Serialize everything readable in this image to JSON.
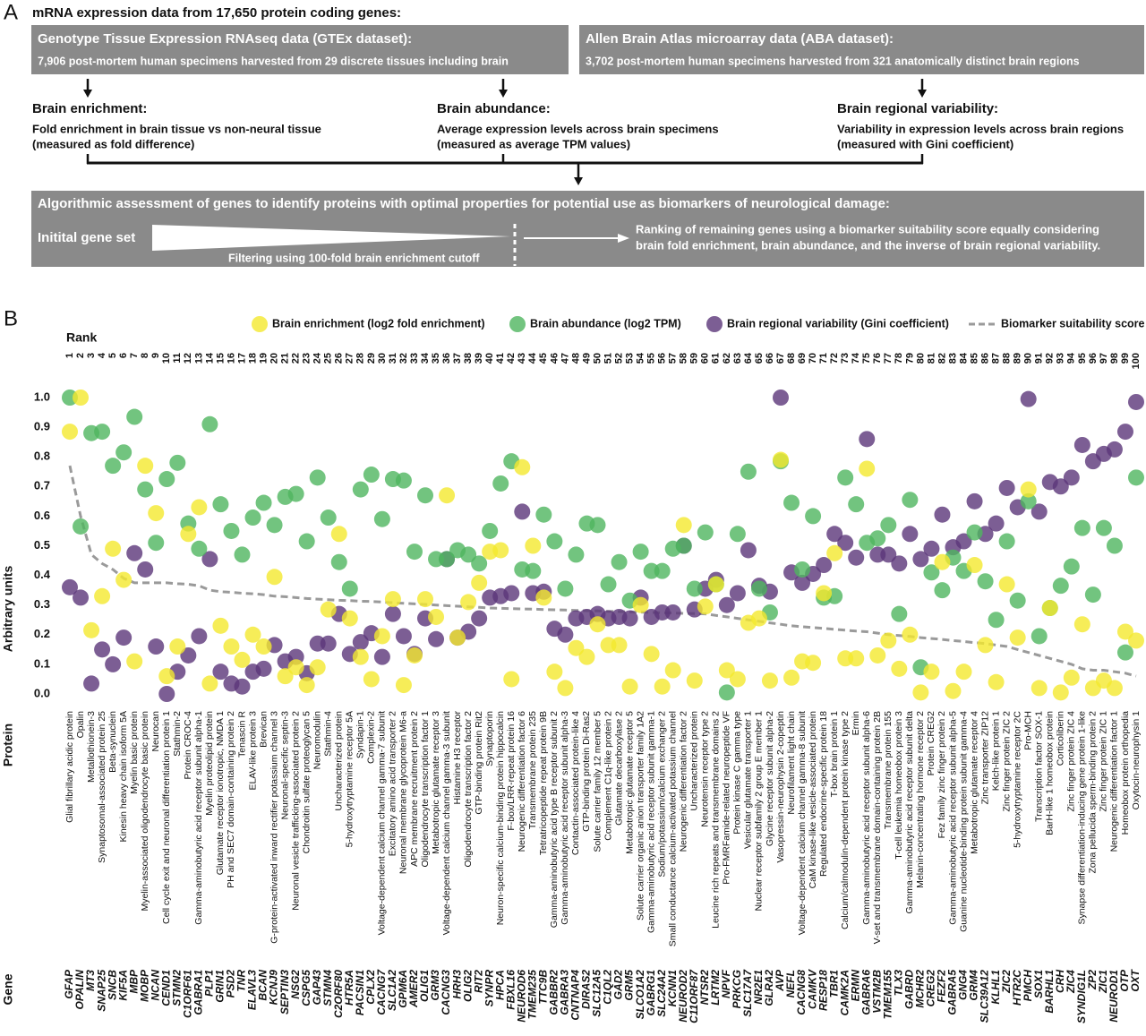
{
  "panel_a": {
    "label": "A",
    "title": "mRNA expression data from 17,650 protein coding genes:",
    "datasets": [
      {
        "title": "Genotype Tissue Expression RNAseq data (GTEx dataset):",
        "text": "7,906 post-mortem human specimens harvested from 29 discrete tissues including brain"
      },
      {
        "title": "Allen Brain Atlas microarray data (ABA dataset):",
        "text": "3,702 post-mortem human specimens harvested from 321 anatomically distinct brain regions"
      }
    ],
    "measures": [
      {
        "title": "Brain enrichment:",
        "lines": [
          "Fold enrichment in brain tissue vs non-neural tissue",
          "(measured as fold difference)"
        ]
      },
      {
        "title": "Brain abundance:",
        "lines": [
          "Average expression levels across brain specimens",
          "(measured as average TPM values)"
        ]
      },
      {
        "title": "Brain regional variability:",
        "lines": [
          "Variability in expression levels across brain regions",
          "(measured with Gini coefficient)"
        ]
      }
    ],
    "assessment": {
      "title": "Algorithmic assessment of genes to identify proteins with optimal properties for potential use as biomarkers of neurological damage:",
      "start": "Initital gene set",
      "filter": "Filtering using 100-fold brain enrichment cutoff",
      "ranking": [
        "Ranking of remaining genes using a biomarker suitability score equally considering",
        "brain fold enrichment, brain abundance, and the inverse of brain regional variability."
      ]
    }
  },
  "panel_b": {
    "label": "B"
  },
  "chart_data": {
    "type": "scatter",
    "rank_label": "Rank",
    "y_label": "Arbitrary units",
    "protein_label": "Protein",
    "gene_label": "Gene",
    "categories": [
      1,
      2,
      3,
      4,
      5,
      6,
      7,
      8,
      9,
      10,
      11,
      12,
      13,
      14,
      15,
      16,
      17,
      18,
      19,
      20,
      21,
      22,
      23,
      24,
      25,
      26,
      27,
      28,
      29,
      30,
      31,
      32,
      33,
      34,
      35,
      36,
      37,
      38,
      39,
      40,
      41,
      42,
      43,
      44,
      45,
      46,
      47,
      48,
      49,
      50,
      51,
      52,
      53,
      54,
      55,
      56,
      57,
      58,
      59,
      60,
      61,
      62,
      63,
      64,
      65,
      66,
      67,
      68,
      69,
      70,
      71,
      72,
      73,
      74,
      75,
      76,
      77,
      78,
      79,
      80,
      81,
      82,
      83,
      84,
      85,
      86,
      87,
      88,
      89,
      90,
      91,
      92,
      93,
      94,
      95,
      96,
      97,
      98,
      99,
      100
    ],
    "proteins": [
      "Glial fibrillary acidic protein",
      "Opalin",
      "Metallothionein-3",
      "Synaptosomal-associated protein 25",
      "Beta-synuclein",
      "Kinesin heavy chain isoform 5A",
      "Myelin basic protein",
      "Myelin-associated oligodendrocyte basic protein",
      "Neurocan",
      "Cell cycle exit and neuronal differentiation protein 1",
      "Stathmin-2",
      "Protein CROC-4",
      "Gamma-aminobutyric acid receptor subunit alpha-1",
      "Myelin proteolipid protein",
      "Glutamate receptor ionotropic, NMDA 1",
      "PH and SEC7 domain-containing protein 2",
      "Tenascin R",
      "ELAV-like protein 3",
      "Brevican",
      "G-protein-activated inward rectifier potassium channel 3",
      "Neuronal-specific septin-3",
      "Neuronal vesicle trafficking-associated protein 2",
      "Chondroitin sulfate proteoglycan 5",
      "Neuromodulin",
      "Stathmin-4",
      "Uncharacterized protein",
      "5-hydroxytryptamine receptor 5A",
      "Syndapin-1",
      "Complexin-2",
      "Voltage-dependent calcium channel gamma-7 subunit",
      "Excitatory amino acid transporter 2",
      "Neuronal membrane glycoprotein M6-a",
      "APC membrane recruitment protein 2",
      "Oligodendrocyte transcription factor 1",
      "Metabotropic glutamate receptor 3",
      "Voltage-dependent calcium channel gamma-3 subunit",
      "Histamine H3 receptor",
      "Oligodendrocyte transcription factor 2",
      "GTP-binding protein Rit2",
      "Synaptoporin",
      "Neuron-specific calcium-binding protein hippocalcin",
      "F-box/LRR-repeat protein 16",
      "Neurogenic differentiation factor 6",
      "Transmembrane protein 235",
      "Tetratricopeptide repeat protein 9B",
      "Gamma-aminobutyric acid type B receptor subunit 2",
      "Gamma-aminobutyric acid receptor subunit alpha-3",
      "Contactin-associated protein-like 4",
      "GTP-binding protein Di-Ras2",
      "Solute carrier family 12 member 5",
      "Complement C1q-like protein 2",
      "Glutamate decarboxylase 2",
      "Metabotropic glutamate receptor 5",
      "Solute carrier organic anion transporter family 1A2",
      "Gamma-aminobutyric acid receptor subunit gamma-1",
      "Sodium/potassium/calcium exchanger 2",
      "Small conductance calcium-activated potassium channel",
      "Neurogenic differentiation factor 2",
      "Uncharacterized protein",
      "Neurotensin receptor type 2",
      "Leucine rich repeats and transmembrane domains 2",
      "Pro-FMRFamide-related neuropeptide VF",
      "Protein kinase C gamma type",
      "Vesicular glutamate transporter 1",
      "Nuclear receptor subfamily 2 group E member 1",
      "Glycine receptor subunit alpha-2",
      "Vasopressin-neurophysin 2-copeptin",
      "Neurofilament light chain",
      "Voltage-dependent calcium channel gamma-8 subunit",
      "CaM kinase-like vesicle-associated protein",
      "Regulated endocrine-specific protein 18",
      "T-box brain protein 1",
      "Calcium/calmodulin-dependent protein kinase type 2",
      "Ermin",
      "Gamma-aminobutyric acid receptor subunit alpha-6",
      "V-set and transmembrane domain-containing protein 2B",
      "Transmembrane protein 155",
      "T-cell leukemia homeobox protein 3",
      "Gamma-aminobutyric acid receptor subunit delta",
      "Melanin-concentrating hormone receptor 2",
      "Protein CREG2",
      "Fez family zinc finger protein 2",
      "Gamma-aminobutyric acid receptor subunit alpha-5",
      "Guanine nucleotide-binding protein subunit gamma-4",
      "Metabotropic glutamate receptor 4",
      "Zinc transporter ZIP12",
      "Kelch-like protein 1",
      "Zinc finger protein ZIC 2",
      "5-hydroxytryptamine receptor 2C",
      "Pro-MCH",
      "Transcription factor SOX-1",
      "BarH-like 1 homeobox protein",
      "Corticoliberin",
      "Zinc finger protein ZIC 4",
      "Synapse differentiation-inducing gene protein 1-like",
      "Zona pellucida sperm-binding protein 2",
      "Zinc finger protein ZIC 1",
      "Neurogenic differentiation factor 1",
      "Homeobox protein orthopedia",
      "Oxytocin-neurophysin 1"
    ],
    "genes": [
      "GFAP",
      "OPALIN",
      "MT3",
      "SNAP25",
      "SNCB",
      "KIF5A",
      "MBP",
      "MOBP",
      "NCAN",
      "CEND1",
      "STMN2",
      "C1ORF61",
      "GABRA1",
      "PLP1",
      "GRIN1",
      "PSD2",
      "TNR",
      "ELAVL3",
      "BCAN",
      "KCNJ9",
      "SEPTIN3",
      "NSG2",
      "CSPG5",
      "GAP43",
      "STMN4",
      "C2ORF80",
      "HTR5A",
      "PACSIN1",
      "CPLX2",
      "CACNG7",
      "SLC1A2",
      "GPM6A",
      "AMER2",
      "OLIG1",
      "GRM3",
      "CACNG3",
      "HRH3",
      "OLIG2",
      "RIT2",
      "SYNPR",
      "HPCA",
      "FBXL16",
      "NEUROD6",
      "TMEM235",
      "TTC9B",
      "GABBR2",
      "GABRA3",
      "CNTNAP4",
      "DIRAS2",
      "SLC12A5",
      "C1QL2",
      "GAD2",
      "GRM5",
      "SLCO1A2",
      "GABRG1",
      "SLC24A2",
      "KCNN1",
      "NEUROD2",
      "C11ORF87",
      "NTSR2",
      "LRTM2",
      "NPVF",
      "PRKCG",
      "SLC17A7",
      "NR2E1",
      "GLRA2",
      "AVP",
      "NEFL",
      "CACNG8",
      "CAMKV",
      "RESP18",
      "TBR1",
      "CAMK2A",
      "ERMN",
      "GABRA6",
      "VSTM2B",
      "TMEM155",
      "TLX3",
      "GABRD",
      "MCHR2",
      "CREG2",
      "FEZF2",
      "GABRA5",
      "GNG4",
      "GRM4",
      "SLC39A12",
      "KLHL1",
      "ZIC2",
      "HTR2C",
      "PMCH",
      "SOX1",
      "BARHL1",
      "CRH",
      "ZIC4",
      "SYNDIG1L",
      "ZP2",
      "ZIC1",
      "NEUROD1",
      "OTP",
      "OXT"
    ],
    "series": [
      {
        "name": "Brain enrichment (log2 fold enrichment)",
        "color": "#f4e92e",
        "kind": "dot",
        "values": [
          0.885,
          1.0,
          0.215,
          0.33,
          0.49,
          0.385,
          0.11,
          0.77,
          0.61,
          0.06,
          0.16,
          0.54,
          0.63,
          0.035,
          0.23,
          0.16,
          0.115,
          0.2,
          0.16,
          0.395,
          0.06,
          0.09,
          0.03,
          0.09,
          0.285,
          0.54,
          0.255,
          0.125,
          0.05,
          0.195,
          0.32,
          0.03,
          0.13,
          0.32,
          0.26,
          0.67,
          0.19,
          0.31,
          0.375,
          0.48,
          0.485,
          0.05,
          0.765,
          0.5,
          0.325,
          0.075,
          0.02,
          0.155,
          0.125,
          0.235,
          0.165,
          0.165,
          0.025,
          0.3,
          0.135,
          0.025,
          0.08,
          0.57,
          0.045,
          0.295,
          0.37,
          0.08,
          0.05,
          0.24,
          0.255,
          0.045,
          0.79,
          0.055,
          0.11,
          0.105,
          0.34,
          0.475,
          0.12,
          0.12,
          0.76,
          0.13,
          0.18,
          0.085,
          0.2,
          0.005,
          0.075,
          0.445,
          0.01,
          0.075,
          0.435,
          0.165,
          0.04,
          0.37,
          0.19,
          0.69,
          0.02,
          0.29,
          0.005,
          0.055,
          0.235,
          0.02,
          0.045,
          0.02,
          0.21,
          0.18
        ]
      },
      {
        "name": "Brain abundance (log2 TPM)",
        "color": "#4fb55f",
        "kind": "dot",
        "values": [
          1.0,
          0.565,
          0.88,
          0.885,
          0.77,
          0.815,
          0.935,
          0.69,
          0.51,
          0.725,
          0.78,
          0.575,
          0.49,
          0.91,
          0.64,
          0.55,
          0.47,
          0.595,
          0.645,
          0.57,
          0.665,
          0.675,
          0.515,
          0.73,
          0.595,
          0.445,
          0.355,
          0.69,
          0.74,
          0.59,
          0.725,
          0.72,
          0.48,
          0.67,
          0.455,
          0.455,
          0.485,
          0.47,
          0.44,
          0.55,
          0.71,
          0.785,
          0.42,
          0.415,
          0.605,
          0.515,
          0.355,
          0.47,
          0.575,
          0.57,
          0.37,
          0.445,
          0.315,
          0.48,
          0.415,
          0.415,
          0.49,
          0.5,
          0.355,
          0.545,
          0.37,
          0.005,
          0.54,
          0.75,
          0.355,
          0.275,
          0.785,
          0.645,
          0.42,
          0.6,
          0.325,
          0.33,
          0.73,
          0.64,
          0.51,
          0.525,
          0.57,
          0.27,
          0.655,
          0.09,
          0.41,
          0.35,
          0.46,
          0.415,
          0.545,
          0.38,
          0.25,
          0.515,
          0.315,
          0.65,
          0.195,
          0.29,
          0.365,
          0.43,
          0.56,
          0.335,
          0.56,
          0.5,
          0.14,
          0.73
        ]
      },
      {
        "name": "Brain regional variability (Gini coefficient)",
        "color": "#5b3679",
        "kind": "dot",
        "values": [
          0.36,
          0.325,
          0.035,
          0.15,
          0.1,
          0.19,
          0.475,
          0.42,
          0.16,
          0.0,
          0.075,
          0.13,
          0.195,
          0.455,
          0.075,
          0.035,
          0.025,
          0.075,
          0.085,
          0.165,
          0.11,
          0.125,
          0.07,
          0.17,
          0.17,
          0.27,
          0.135,
          0.175,
          0.205,
          0.125,
          0.27,
          0.195,
          0.135,
          0.255,
          0.185,
          0.455,
          0.19,
          0.21,
          0.255,
          0.325,
          0.33,
          0.34,
          0.615,
          0.34,
          0.345,
          0.22,
          0.2,
          0.255,
          0.26,
          0.27,
          0.255,
          0.26,
          0.255,
          0.325,
          0.26,
          0.275,
          0.275,
          0.5,
          0.285,
          0.355,
          0.385,
          0.3,
          0.34,
          0.485,
          0.365,
          0.345,
          1.0,
          0.41,
          0.375,
          0.405,
          0.435,
          0.54,
          0.51,
          0.46,
          0.86,
          0.47,
          0.47,
          0.44,
          0.54,
          0.455,
          0.49,
          0.605,
          0.495,
          0.515,
          0.65,
          0.54,
          0.575,
          0.695,
          0.63,
          0.995,
          0.615,
          0.715,
          0.7,
          0.73,
          0.84,
          0.785,
          0.81,
          0.825,
          0.885,
          0.985
        ]
      },
      {
        "name": "Biomarker suitability score",
        "color": "#9a9a9a",
        "kind": "dashed-line",
        "values": [
          0.77,
          0.6,
          0.47,
          0.44,
          0.42,
          0.39,
          0.375,
          0.375,
          0.375,
          0.375,
          0.372,
          0.37,
          0.365,
          0.35,
          0.345,
          0.343,
          0.34,
          0.338,
          0.335,
          0.33,
          0.328,
          0.325,
          0.322,
          0.32,
          0.318,
          0.316,
          0.315,
          0.313,
          0.312,
          0.31,
          0.308,
          0.306,
          0.304,
          0.302,
          0.3,
          0.298,
          0.296,
          0.294,
          0.292,
          0.29,
          0.289,
          0.288,
          0.287,
          0.286,
          0.285,
          0.284,
          0.283,
          0.282,
          0.281,
          0.28,
          0.279,
          0.278,
          0.277,
          0.276,
          0.275,
          0.274,
          0.273,
          0.272,
          0.271,
          0.27,
          0.265,
          0.26,
          0.255,
          0.25,
          0.245,
          0.24,
          0.235,
          0.23,
          0.227,
          0.224,
          0.221,
          0.218,
          0.215,
          0.212,
          0.21,
          0.205,
          0.2,
          0.197,
          0.194,
          0.19,
          0.187,
          0.184,
          0.18,
          0.177,
          0.173,
          0.17,
          0.165,
          0.16,
          0.15,
          0.14,
          0.13,
          0.12,
          0.11,
          0.1,
          0.085,
          0.08,
          0.08,
          0.075,
          0.07,
          0.06
        ]
      }
    ],
    "ylim": [
      -0.02,
      1.06
    ],
    "yticks": [
      {
        "value": 0,
        "label": "0.0"
      },
      0.1,
      0.2,
      0.3,
      0.4,
      0.5,
      0.6,
      0.7,
      0.8,
      0.9,
      {
        "value": 1,
        "label": "1.0"
      }
    ],
    "grid": false
  }
}
